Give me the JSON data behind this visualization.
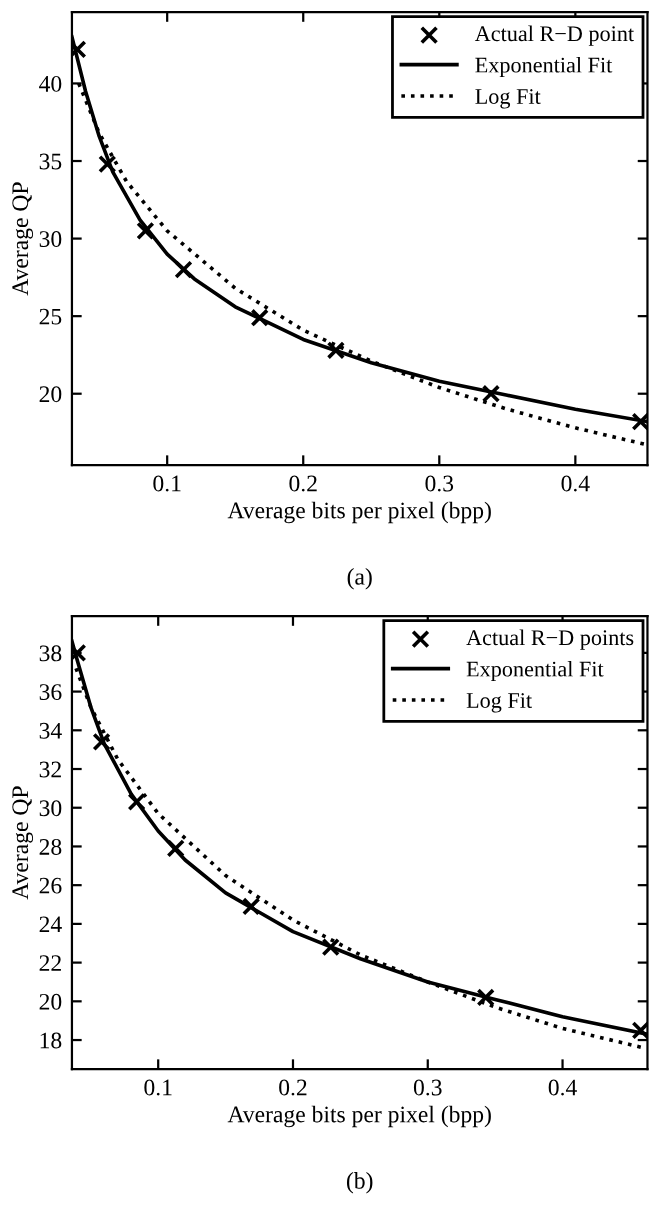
{
  "chart_data": [
    {
      "type": "line",
      "xlabel": "Average bits per pixel (bpp)",
      "ylabel": "Average QP",
      "annotations": [
        "(a)"
      ],
      "xlim": [
        0.03,
        0.453
      ],
      "ylim": [
        15.4,
        44.6
      ],
      "xticks": [
        0.1,
        0.2,
        0.3,
        0.4
      ],
      "yticks": [
        20,
        25,
        30,
        35,
        40
      ],
      "grid": false,
      "legend": "top right",
      "series": [
        {
          "name": "Actual R−D point",
          "type": "scatter",
          "marker": "cross",
          "color": "#000000",
          "x": [
            0.034,
            0.056,
            0.084,
            0.112,
            0.168,
            0.224,
            0.338,
            0.448
          ],
          "values": [
            42.2,
            34.8,
            30.5,
            28.0,
            24.9,
            22.8,
            20.0,
            18.2
          ]
        },
        {
          "name": "Exponential Fit",
          "line_style": "solid",
          "color": "#000000",
          "x": [
            0.03,
            0.04,
            0.05,
            0.06,
            0.08,
            0.1,
            0.12,
            0.15,
            0.2,
            0.25,
            0.3,
            0.35,
            0.4,
            0.453
          ],
          "values": [
            43.0,
            39.5,
            36.6,
            34.3,
            31.2,
            29.0,
            27.4,
            25.6,
            23.5,
            22.0,
            20.8,
            19.9,
            19.0,
            18.2
          ]
        },
        {
          "name": "Log Fit",
          "line_style": "dotted",
          "color": "#000000",
          "x": [
            0.035,
            0.05,
            0.07,
            0.1,
            0.15,
            0.2,
            0.25,
            0.3,
            0.35,
            0.4,
            0.453
          ],
          "values": [
            40.0,
            36.8,
            33.7,
            30.5,
            26.8,
            24.1,
            22.1,
            20.4,
            19.0,
            17.8,
            16.7
          ]
        }
      ]
    },
    {
      "type": "line",
      "xlabel": "Average bits per pixel (bpp)",
      "ylabel": "Average QP",
      "annotations": [
        "(b)"
      ],
      "xlim": [
        0.036,
        0.463
      ],
      "ylim": [
        16.5,
        39.9
      ],
      "xticks": [
        0.1,
        0.2,
        0.3,
        0.4
      ],
      "yticks": [
        18,
        20,
        22,
        24,
        26,
        28,
        30,
        32,
        34,
        36,
        38
      ],
      "grid": false,
      "legend": "top right",
      "series": [
        {
          "name": "Actual R−D points",
          "type": "scatter",
          "marker": "cross",
          "color": "#000000",
          "x": [
            0.04,
            0.058,
            0.084,
            0.113,
            0.169,
            0.228,
            0.343,
            0.458
          ],
          "values": [
            38.0,
            33.4,
            30.3,
            27.9,
            24.9,
            22.8,
            20.2,
            18.5
          ]
        },
        {
          "name": "Exponential Fit",
          "line_style": "solid",
          "color": "#000000",
          "x": [
            0.036,
            0.04,
            0.05,
            0.06,
            0.08,
            0.1,
            0.12,
            0.15,
            0.2,
            0.25,
            0.3,
            0.35,
            0.4,
            0.463
          ],
          "values": [
            38.6,
            37.6,
            35.2,
            33.3,
            30.7,
            28.8,
            27.3,
            25.6,
            23.6,
            22.2,
            21.0,
            20.1,
            19.2,
            18.3
          ]
        },
        {
          "name": "Log Fit",
          "line_style": "dotted",
          "color": "#000000",
          "x": [
            0.039,
            0.05,
            0.07,
            0.1,
            0.15,
            0.2,
            0.25,
            0.3,
            0.35,
            0.4,
            0.46
          ],
          "values": [
            37.2,
            35.2,
            32.5,
            29.7,
            26.5,
            24.2,
            22.4,
            21.0,
            19.7,
            18.6,
            17.6
          ]
        }
      ]
    }
  ]
}
